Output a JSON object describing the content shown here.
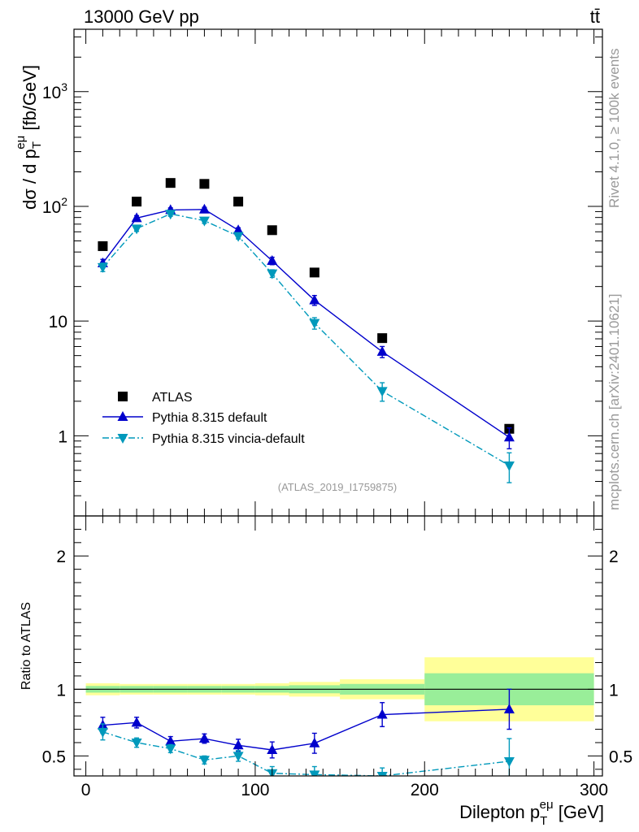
{
  "header": {
    "energy_label": "13000 GeV pp",
    "process_label": "tt̄"
  },
  "side_labels": {
    "rivet": "Rivet 4.1.0, ≥ 100k events",
    "mcplots": "mcplots.cern.ch [arXiv:2401.10621]"
  },
  "analysis_id": "(ATLAS_2019_I1759875)",
  "colors": {
    "atlas": "#000000",
    "pythia_default": "#0000cc",
    "pythia_vincia": "#0099bb",
    "band_inner": "#99ee99",
    "band_outer": "#ffff99"
  },
  "chart_data": [
    {
      "type": "scatter",
      "panel": "main",
      "ylabel": "dσ / d p_T^eμ [fb/GeV]",
      "yscale": "log",
      "ylim": [
        0.2,
        3500
      ],
      "xlim": [
        -7,
        305
      ],
      "ytick_labels": [
        "1",
        "10",
        "10^2",
        "10^3"
      ],
      "ytick_values": [
        1,
        10,
        100,
        1000
      ],
      "legend_position": "bottom-left",
      "series": [
        {
          "name": "ATLAS",
          "marker": "square",
          "x": [
            10,
            30,
            50,
            70,
            90,
            110,
            135,
            175,
            250
          ],
          "y": [
            45,
            110,
            160,
            157,
            110,
            62,
            26.5,
            7.1,
            1.15
          ]
        },
        {
          "name": "Pythia 8.315 default",
          "marker": "triangle-up",
          "line": "solid",
          "x": [
            10,
            30,
            50,
            70,
            90,
            110,
            135,
            175,
            250
          ],
          "y": [
            32,
            79,
            93,
            94,
            62,
            33.5,
            15.2,
            5.4,
            0.97
          ],
          "yerr": [
            2.5,
            4,
            4,
            4,
            3,
            2.5,
            1.5,
            0.6,
            0.2
          ]
        },
        {
          "name": "Pythia 8.315 vincia-default",
          "marker": "triangle-down",
          "line": "dash-dot",
          "x": [
            10,
            30,
            50,
            70,
            90,
            110,
            135,
            175,
            250
          ],
          "y": [
            29.5,
            64,
            86,
            75,
            55,
            26,
            9.6,
            2.45,
            0.55
          ],
          "yerr": [
            2.5,
            3.5,
            4,
            4,
            3,
            2,
            1.1,
            0.45,
            0.16
          ]
        }
      ]
    },
    {
      "type": "scatter",
      "panel": "ratio",
      "ylabel": "Ratio to ATLAS",
      "xlabel": "Dilepton p_T^eμ [GeV]",
      "ylim": [
        0.35,
        2.3
      ],
      "xlim": [
        -7,
        305
      ],
      "xtick_labels": [
        "0",
        "100",
        "200",
        "300"
      ],
      "xtick_values": [
        0,
        100,
        200,
        300
      ],
      "ytick_labels": [
        "0.5",
        "1",
        "2"
      ],
      "ytick_values": [
        0.5,
        1,
        2
      ],
      "bands": {
        "x_edges": [
          0,
          20,
          40,
          60,
          80,
          100,
          120,
          150,
          200,
          300
        ],
        "inner_low": [
          0.975,
          0.975,
          0.975,
          0.975,
          0.975,
          0.975,
          0.97,
          0.96,
          0.88
        ],
        "inner_high": [
          1.025,
          1.025,
          1.025,
          1.025,
          1.025,
          1.025,
          1.03,
          1.04,
          1.12
        ],
        "outer_low": [
          0.955,
          0.96,
          0.96,
          0.96,
          0.96,
          0.955,
          0.945,
          0.925,
          0.76
        ],
        "outer_high": [
          1.045,
          1.04,
          1.04,
          1.04,
          1.04,
          1.045,
          1.055,
          1.075,
          1.24
        ]
      },
      "series": [
        {
          "name": "Pythia 8.315 default",
          "x": [
            10,
            30,
            50,
            70,
            90,
            110,
            135,
            175,
            250
          ],
          "y": [
            0.73,
            0.75,
            0.61,
            0.63,
            0.58,
            0.545,
            0.595,
            0.81,
            0.85
          ],
          "yerr": [
            0.06,
            0.04,
            0.035,
            0.035,
            0.045,
            0.06,
            0.075,
            0.09,
            0.15
          ]
        },
        {
          "name": "Pythia 8.315 vincia-default",
          "x": [
            10,
            30,
            50,
            70,
            90,
            110,
            135,
            175,
            250
          ],
          "y": [
            0.68,
            0.6,
            0.555,
            0.47,
            0.5,
            0.37,
            0.36,
            0.35,
            0.46
          ],
          "yerr": [
            0.06,
            0.035,
            0.03,
            0.03,
            0.04,
            0.05,
            0.06,
            0.06,
            0.17
          ]
        }
      ]
    }
  ]
}
